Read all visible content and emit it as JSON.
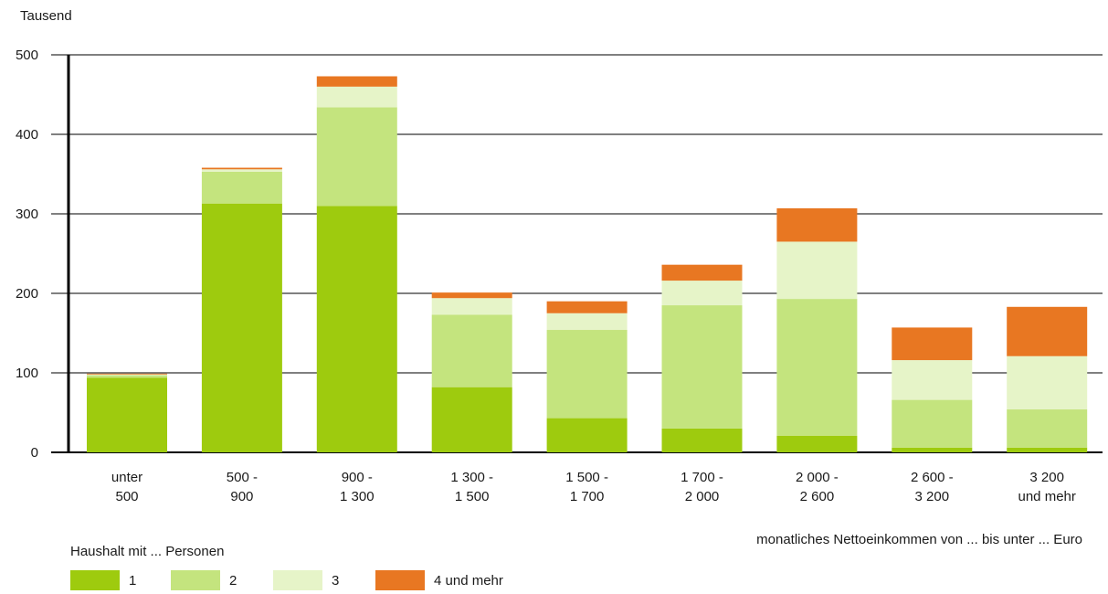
{
  "chart_data": {
    "type": "bar",
    "stacked": true,
    "ylabel": "Tausend",
    "xlabel": "monatliches Nettoeinkommen von ... bis unter ... Euro",
    "ylim": [
      0,
      500
    ],
    "yticks": [
      0,
      100,
      200,
      300,
      400,
      500
    ],
    "grid": true,
    "categories": [
      [
        "unter",
        "500"
      ],
      [
        "500 -",
        "900"
      ],
      [
        "900 -",
        "1 300"
      ],
      [
        "1 300 -",
        "1 500"
      ],
      [
        "1 500 -",
        "1 700"
      ],
      [
        "1 700 -",
        "2 000"
      ],
      [
        "2 000 -",
        "2 600"
      ],
      [
        "2 600 -",
        "3 200"
      ],
      [
        "3 200",
        "und mehr"
      ]
    ],
    "legend_title": "Haushalt mit ... Personen",
    "legend_position": "bottom-left",
    "series": [
      {
        "name": "1",
        "color": "#9ecb0e",
        "values": [
          94,
          313,
          310,
          82,
          43,
          30,
          21,
          6,
          6
        ]
      },
      {
        "name": "2",
        "color": "#c4e47e",
        "values": [
          3,
          40,
          124,
          91,
          111,
          155,
          172,
          60,
          48
        ]
      },
      {
        "name": "3",
        "color": "#e6f4c8",
        "values": [
          1,
          3,
          26,
          21,
          21,
          31,
          72,
          50,
          67
        ]
      },
      {
        "name": "4 und mehr",
        "color": "#e87722",
        "values": [
          1,
          2,
          13,
          7,
          15,
          20,
          42,
          41,
          62
        ]
      }
    ]
  }
}
